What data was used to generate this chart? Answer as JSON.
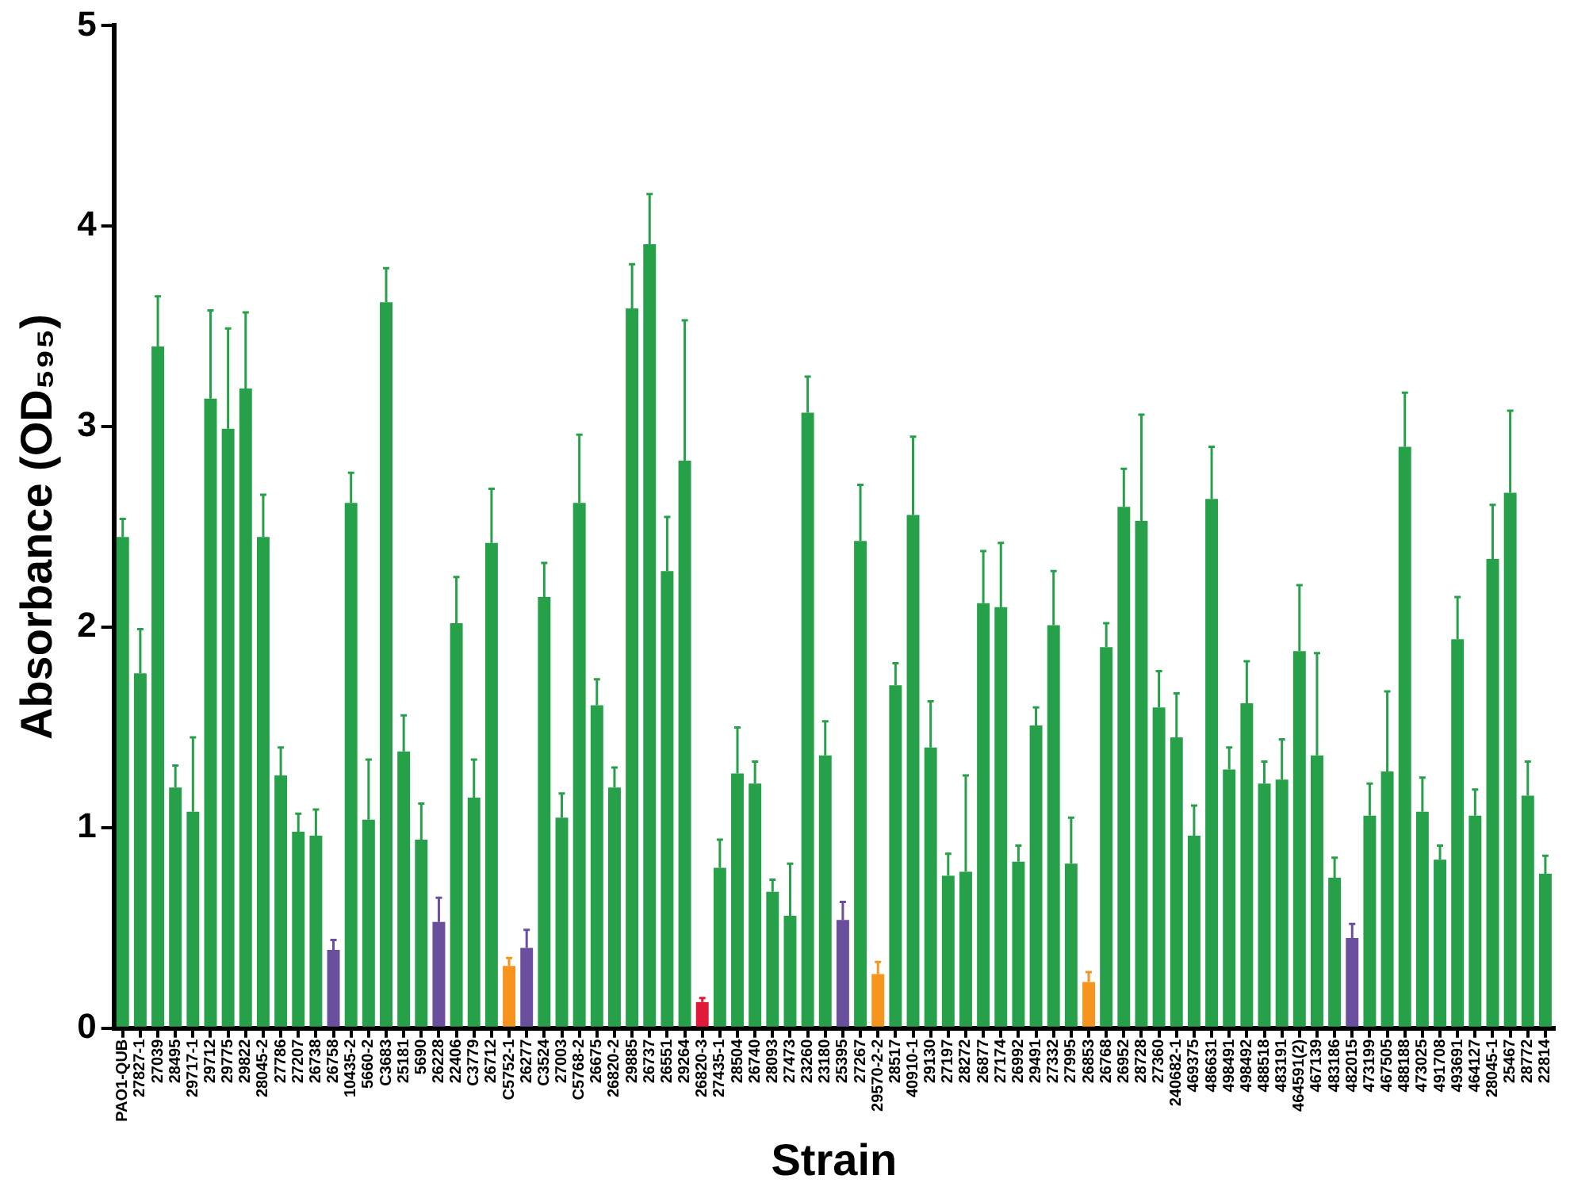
{
  "chart_data": {
    "type": "bar",
    "xlabel": "Strain",
    "ylabel": "Absorbance (OD₅₉₅)",
    "categories": [
      "PAO1-QUB",
      "27827-1",
      "27039",
      "28495",
      "29717-1",
      "29712",
      "29775",
      "29822",
      "28045-2",
      "27786",
      "27207",
      "26738",
      "26758",
      "10435-2",
      "5660-2",
      "C3683",
      "25181",
      "5690",
      "26228",
      "22406",
      "C3779",
      "26712",
      "C5752-1",
      "26277",
      "C3524",
      "27003",
      "C5768-2",
      "26675",
      "26820-2",
      "29885",
      "26737",
      "26551",
      "29264",
      "26820-3",
      "27435-1",
      "28504",
      "26740",
      "28093",
      "27473",
      "23260",
      "23180",
      "25395",
      "27267",
      "29570-2-2",
      "28517",
      "40910-1",
      "29130",
      "27197",
      "28272",
      "26877",
      "27174",
      "26992",
      "29491",
      "27332",
      "27995",
      "26853",
      "26768",
      "26952",
      "28728",
      "27360",
      "240682-1",
      "469375",
      "486631",
      "498491",
      "498492",
      "488518",
      "483191",
      "464591(2)",
      "467139",
      "483186",
      "482015",
      "473199",
      "467505",
      "488188",
      "473025",
      "491708",
      "493691",
      "464127",
      "28045-1",
      "25467",
      "28772",
      "22814"
    ],
    "values": [
      2.45,
      1.77,
      3.4,
      1.2,
      1.08,
      3.14,
      2.99,
      3.19,
      2.45,
      1.26,
      0.98,
      0.96,
      0.39,
      2.62,
      1.04,
      3.62,
      1.38,
      0.94,
      0.53,
      2.02,
      1.15,
      2.42,
      0.31,
      0.4,
      2.15,
      1.05,
      2.62,
      1.61,
      1.2,
      3.59,
      3.91,
      2.28,
      2.83,
      0.13,
      0.8,
      1.27,
      1.22,
      0.68,
      0.56,
      3.07,
      1.36,
      0.54,
      2.43,
      0.27,
      1.71,
      2.56,
      1.4,
      0.76,
      0.78,
      2.12,
      2.1,
      0.83,
      1.51,
      2.01,
      0.82,
      0.23,
      1.9,
      2.6,
      2.53,
      1.6,
      1.45,
      0.96,
      2.64,
      1.29,
      1.62,
      1.22,
      1.24,
      1.88,
      1.36,
      0.75,
      0.45,
      1.06,
      1.28,
      2.9,
      1.08,
      0.84,
      1.94,
      1.06,
      2.34,
      2.67,
      1.16,
      0.77
    ],
    "errors": [
      0.09,
      0.22,
      0.25,
      0.11,
      0.37,
      0.44,
      0.5,
      0.38,
      0.21,
      0.14,
      0.09,
      0.13,
      0.05,
      0.15,
      0.3,
      0.17,
      0.18,
      0.18,
      0.12,
      0.23,
      0.19,
      0.27,
      0.04,
      0.09,
      0.17,
      0.12,
      0.34,
      0.13,
      0.1,
      0.22,
      0.25,
      0.27,
      0.7,
      0.02,
      0.14,
      0.23,
      0.11,
      0.06,
      0.26,
      0.18,
      0.17,
      0.09,
      0.28,
      0.06,
      0.11,
      0.39,
      0.23,
      0.11,
      0.48,
      0.26,
      0.32,
      0.08,
      0.09,
      0.27,
      0.23,
      0.05,
      0.12,
      0.19,
      0.53,
      0.18,
      0.22,
      0.15,
      0.26,
      0.11,
      0.21,
      0.11,
      0.2,
      0.33,
      0.51,
      0.1,
      0.07,
      0.16,
      0.4,
      0.27,
      0.17,
      0.07,
      0.21,
      0.13,
      0.27,
      0.41,
      0.17,
      0.09
    ],
    "colors": [
      "#27a04a",
      "#27a04a",
      "#27a04a",
      "#27a04a",
      "#27a04a",
      "#27a04a",
      "#27a04a",
      "#27a04a",
      "#27a04a",
      "#27a04a",
      "#27a04a",
      "#27a04a",
      "#6a4f9e",
      "#27a04a",
      "#27a04a",
      "#27a04a",
      "#27a04a",
      "#27a04a",
      "#6a4f9e",
      "#27a04a",
      "#27a04a",
      "#27a04a",
      "#f7941d",
      "#6a4f9e",
      "#27a04a",
      "#27a04a",
      "#27a04a",
      "#27a04a",
      "#27a04a",
      "#27a04a",
      "#27a04a",
      "#27a04a",
      "#27a04a",
      "#e0193a",
      "#27a04a",
      "#27a04a",
      "#27a04a",
      "#27a04a",
      "#27a04a",
      "#27a04a",
      "#27a04a",
      "#6a4f9e",
      "#27a04a",
      "#f7941d",
      "#27a04a",
      "#27a04a",
      "#27a04a",
      "#27a04a",
      "#27a04a",
      "#27a04a",
      "#27a04a",
      "#27a04a",
      "#27a04a",
      "#27a04a",
      "#27a04a",
      "#f7941d",
      "#27a04a",
      "#27a04a",
      "#27a04a",
      "#27a04a",
      "#27a04a",
      "#27a04a",
      "#27a04a",
      "#27a04a",
      "#27a04a",
      "#27a04a",
      "#27a04a",
      "#27a04a",
      "#27a04a",
      "#27a04a",
      "#6a4f9e",
      "#27a04a",
      "#27a04a",
      "#27a04a",
      "#27a04a",
      "#27a04a",
      "#27a04a",
      "#27a04a",
      "#27a04a",
      "#27a04a",
      "#27a04a",
      "#27a04a"
    ],
    "ylim": [
      0,
      5
    ],
    "yticks": [
      0,
      1,
      2,
      3,
      4,
      5
    ],
    "grid": false,
    "legend": false
  }
}
